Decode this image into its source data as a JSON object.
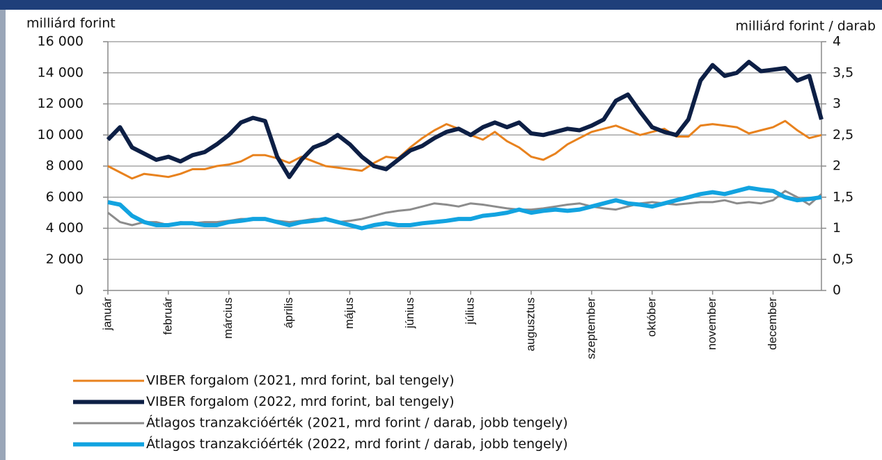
{
  "chart_data": {
    "type": "line",
    "y_axis_label": "milliárd forint",
    "y2_axis_label": "milliárd forint / darab",
    "categories": [
      "január",
      null,
      null,
      null,
      null,
      "február",
      null,
      null,
      null,
      null,
      "március",
      null,
      null,
      null,
      null,
      "április",
      null,
      null,
      null,
      null,
      "május",
      null,
      null,
      null,
      null,
      "június",
      null,
      null,
      null,
      null,
      "július",
      null,
      null,
      null,
      null,
      "augusztus",
      null,
      null,
      null,
      null,
      "szeptember",
      null,
      null,
      null,
      null,
      "október",
      null,
      null,
      null,
      null,
      "november",
      null,
      null,
      null,
      null,
      "december",
      null,
      null,
      null,
      null
    ],
    "ylim": [
      0,
      16000
    ],
    "yticks": [
      0,
      {
        "value": 2000,
        "label": "2 000"
      },
      {
        "value": 4000,
        "label": "4 000"
      },
      {
        "value": 6000,
        "label": "6 000"
      },
      {
        "value": 8000,
        "label": "8 000"
      },
      {
        "value": 10000,
        "label": "10 000"
      },
      {
        "value": 12000,
        "label": "12 000"
      },
      {
        "value": 14000,
        "label": "14 000"
      },
      {
        "value": 16000,
        "label": "16 000"
      }
    ],
    "y2lim": [
      0,
      4
    ],
    "y2ticks": [
      0,
      {
        "value": 0.5,
        "label": "0,5"
      },
      1,
      {
        "value": 1.5,
        "label": "1,5"
      },
      2,
      {
        "value": 2.5,
        "label": "2,5"
      },
      3,
      {
        "value": 3.5,
        "label": "3,5"
      },
      4
    ],
    "grid": true,
    "legend": "bottom",
    "series": [
      {
        "name": "VIBER forgalom (2021, mrd forint, bal tengely)",
        "color": "#e8821e",
        "width": 3,
        "values": [
          8000,
          7600,
          7200,
          7500,
          7400,
          7300,
          7500,
          7800,
          7800,
          8000,
          8100,
          8300,
          8700,
          8700,
          8500,
          8200,
          8600,
          8300,
          8000,
          7900,
          7800,
          7700,
          8200,
          8600,
          8500,
          9200,
          9800,
          10300,
          10700,
          10400,
          10000,
          9700,
          10200,
          9600,
          9200,
          8600,
          8400,
          8800,
          9400,
          9800,
          10200,
          10400,
          10600,
          10300,
          10000,
          10200,
          10400,
          9900,
          9900,
          10600,
          10700,
          10600,
          10500,
          10100,
          10300,
          10500,
          10900,
          10300,
          9800,
          10000
        ]
      },
      {
        "name": "VIBER forgalom (2022, mrd forint, bal tengely)",
        "color": "#0d1f45",
        "width": 6,
        "values": [
          9700,
          10500,
          9200,
          8800,
          8400,
          8600,
          8300,
          8700,
          8900,
          9400,
          10000,
          10800,
          11100,
          10900,
          8600,
          7300,
          8400,
          9200,
          9500,
          10000,
          9400,
          8600,
          8000,
          7800,
          8400,
          9000,
          9300,
          9800,
          10200,
          10400,
          10000,
          10500,
          10800,
          10500,
          10800,
          10100,
          10000,
          10200,
          10400,
          10300,
          10600,
          11000,
          12200,
          12600,
          11500,
          10500,
          10200,
          10000,
          11000,
          13500,
          14500,
          13800,
          14000,
          14700,
          14100,
          14200,
          14300,
          13500,
          13800,
          11000
        ]
      },
      {
        "name": "Átlagos tranzakcióérték (2021, mrd forint / darab, jobb tengely)",
        "color": "#8c8c8c",
        "width": 3,
        "axis": "y2",
        "values": [
          1.25,
          1.1,
          1.05,
          1.1,
          1.1,
          1.05,
          1.1,
          1.08,
          1.1,
          1.1,
          1.12,
          1.15,
          1.15,
          1.15,
          1.12,
          1.1,
          1.12,
          1.15,
          1.15,
          1.1,
          1.12,
          1.15,
          1.2,
          1.25,
          1.28,
          1.3,
          1.35,
          1.4,
          1.38,
          1.35,
          1.4,
          1.38,
          1.35,
          1.32,
          1.3,
          1.3,
          1.32,
          1.35,
          1.38,
          1.4,
          1.35,
          1.32,
          1.3,
          1.35,
          1.4,
          1.42,
          1.4,
          1.38,
          1.4,
          1.42,
          1.42,
          1.45,
          1.4,
          1.42,
          1.4,
          1.45,
          1.6,
          1.5,
          1.38,
          1.55
        ]
      },
      {
        "name": "Átlagos tranzakcióérték (2022, mrd forint / darab, jobb tengely)",
        "color": "#12a3e0",
        "width": 6,
        "axis": "y2",
        "values": [
          1.42,
          1.38,
          1.2,
          1.1,
          1.05,
          1.05,
          1.08,
          1.08,
          1.05,
          1.05,
          1.1,
          1.12,
          1.15,
          1.15,
          1.1,
          1.05,
          1.1,
          1.12,
          1.15,
          1.1,
          1.05,
          1.0,
          1.05,
          1.08,
          1.05,
          1.05,
          1.08,
          1.1,
          1.12,
          1.15,
          1.15,
          1.2,
          1.22,
          1.25,
          1.3,
          1.25,
          1.28,
          1.3,
          1.28,
          1.3,
          1.35,
          1.4,
          1.45,
          1.4,
          1.38,
          1.35,
          1.4,
          1.45,
          1.5,
          1.55,
          1.58,
          1.55,
          1.6,
          1.65,
          1.62,
          1.6,
          1.5,
          1.45,
          1.47,
          1.5
        ]
      }
    ]
  }
}
